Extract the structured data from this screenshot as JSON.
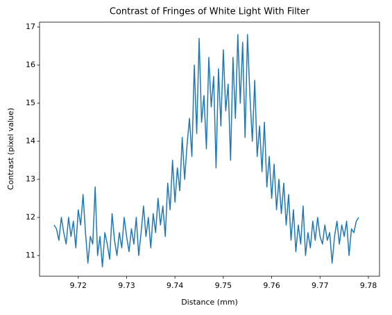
{
  "chart_data": {
    "type": "line",
    "title": "Contrast of Fringes of White Light With Filter",
    "x_label": "Distance (mm)",
    "y_label": "Contrast (pixel value)",
    "color": "#1f77b4",
    "x": [
      9.715,
      9.7155,
      9.716,
      9.7165,
      9.717,
      9.7175,
      9.718,
      9.7185,
      9.719,
      9.7195,
      9.72,
      9.7205,
      9.721,
      9.7215,
      9.722,
      9.7225,
      9.723,
      9.7235,
      9.724,
      9.7245,
      9.725,
      9.7255,
      9.726,
      9.7265,
      9.727,
      9.7275,
      9.728,
      9.7285,
      9.729,
      9.7295,
      9.73,
      9.7305,
      9.731,
      9.7315,
      9.732,
      9.7325,
      9.733,
      9.7335,
      9.734,
      9.7345,
      9.735,
      9.7355,
      9.736,
      9.7365,
      9.737,
      9.7375,
      9.738,
      9.7385,
      9.739,
      9.7395,
      9.74,
      9.7405,
      9.741,
      9.7415,
      9.742,
      9.7425,
      9.743,
      9.7435,
      9.744,
      9.7445,
      9.745,
      9.7455,
      9.746,
      9.7465,
      9.747,
      9.7475,
      9.748,
      9.7485,
      9.749,
      9.7495,
      9.75,
      9.7505,
      9.751,
      9.7515,
      9.752,
      9.7525,
      9.753,
      9.7535,
      9.754,
      9.7545,
      9.755,
      9.7555,
      9.756,
      9.7565,
      9.757,
      9.7575,
      9.758,
      9.7585,
      9.759,
      9.7595,
      9.76,
      9.7605,
      9.761,
      9.7615,
      9.762,
      9.7625,
      9.763,
      9.7635,
      9.764,
      9.7645,
      9.765,
      9.7655,
      9.766,
      9.7665,
      9.767,
      9.7675,
      9.768,
      9.7685,
      9.769,
      9.7695,
      9.77,
      9.7705,
      9.771,
      9.7715,
      9.772,
      9.7725,
      9.773,
      9.7735,
      9.774,
      9.7745,
      9.775,
      9.7755,
      9.776,
      9.7765,
      9.777,
      9.7775,
      9.778
    ],
    "values": [
      11.8,
      11.7,
      11.4,
      12.0,
      11.6,
      11.3,
      12.0,
      11.5,
      11.9,
      11.2,
      12.2,
      11.8,
      12.6,
      11.6,
      10.8,
      11.5,
      11.3,
      12.8,
      11.0,
      11.5,
      10.7,
      11.6,
      11.3,
      10.9,
      12.1,
      11.4,
      11.0,
      11.6,
      11.2,
      12.0,
      11.5,
      11.1,
      11.7,
      11.3,
      12.0,
      11.0,
      11.6,
      12.3,
      11.5,
      12.0,
      11.2,
      12.1,
      11.6,
      12.5,
      11.8,
      12.3,
      11.5,
      12.9,
      12.2,
      13.5,
      12.4,
      13.3,
      12.7,
      14.1,
      13.0,
      13.9,
      14.6,
      13.6,
      16.0,
      14.2,
      16.7,
      14.5,
      15.2,
      13.8,
      16.2,
      14.9,
      15.7,
      13.3,
      15.9,
      14.4,
      16.4,
      14.8,
      15.5,
      13.5,
      16.2,
      14.6,
      16.8,
      15.0,
      16.6,
      14.1,
      16.8,
      15.2,
      14.0,
      15.6,
      13.6,
      14.4,
      13.2,
      14.5,
      12.8,
      13.6,
      12.5,
      13.4,
      12.2,
      13.0,
      12.1,
      12.9,
      11.8,
      12.6,
      11.4,
      12.2,
      11.1,
      11.8,
      11.3,
      12.3,
      11.0,
      11.6,
      11.2,
      11.9,
      11.4,
      12.0,
      11.5,
      11.3,
      11.8,
      11.4,
      11.6,
      10.8,
      11.5,
      11.9,
      11.3,
      11.8,
      11.5,
      11.9,
      11.0,
      11.7,
      11.6,
      11.9,
      12.0
    ],
    "xlim": [
      9.712,
      9.7823
    ],
    "xticks": [
      9.72,
      9.73,
      9.74,
      9.75,
      9.76,
      9.77,
      9.78
    ],
    "ylim": [
      10.455,
      17.127
    ],
    "yticks": [
      11,
      12,
      13,
      14,
      15,
      16,
      17
    ]
  }
}
